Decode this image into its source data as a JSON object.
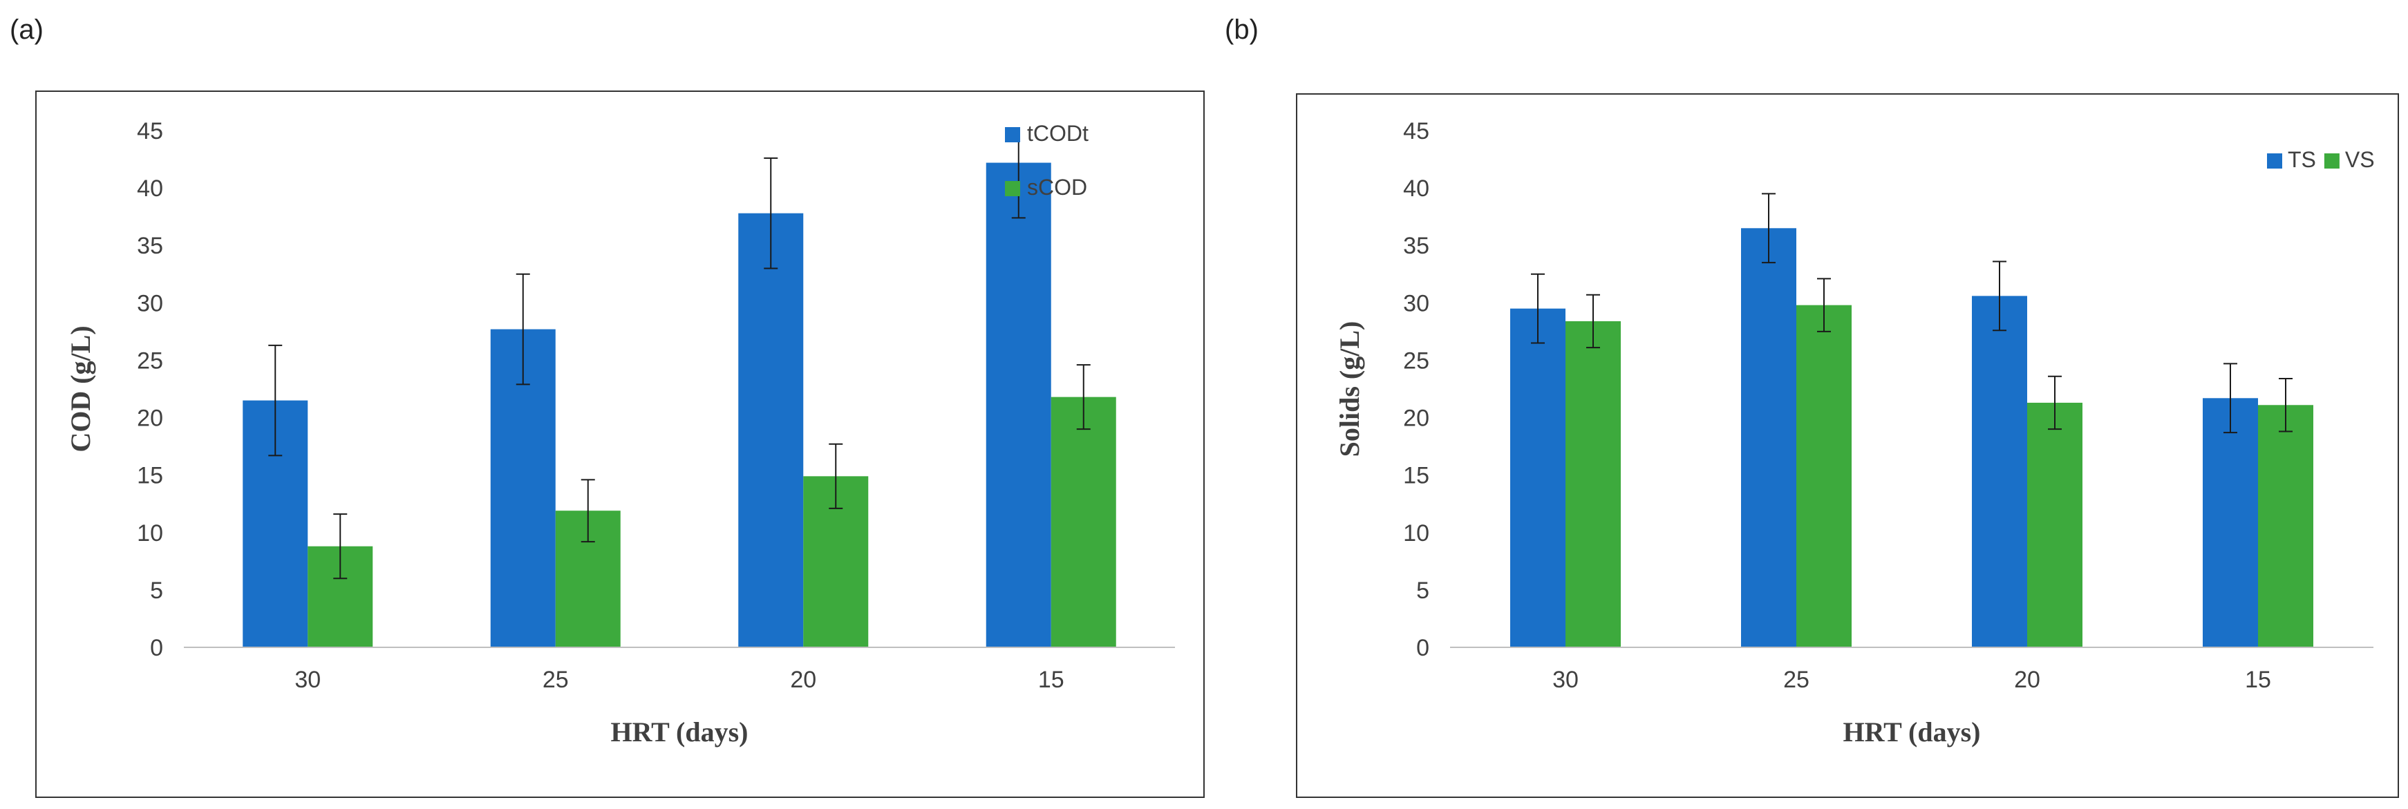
{
  "chart_data": [
    {
      "panel": "(a)",
      "type": "bar",
      "categories": [
        "30",
        "25",
        "20",
        "15"
      ],
      "series": [
        {
          "name": "tCODt",
          "color": "#1a70c8",
          "values": [
            21.5,
            27.7,
            37.8,
            42.2
          ],
          "errors": [
            4.8,
            4.8,
            4.8,
            4.8
          ]
        },
        {
          "name": "sCOD",
          "color": "#3daa3d",
          "values": [
            8.8,
            11.9,
            14.9,
            21.8
          ],
          "errors": [
            2.8,
            2.7,
            2.8,
            2.8
          ]
        }
      ],
      "xlabel": "HRT (days)",
      "ylabel": "COD (g/L)",
      "ylim": [
        0,
        45
      ],
      "yticks": [
        "0",
        "5",
        "10",
        "15",
        "20",
        "25",
        "30",
        "35",
        "40",
        "45"
      ],
      "legend": "top-right, stacked"
    },
    {
      "panel": "(b)",
      "type": "bar",
      "categories": [
        "30",
        "25",
        "20",
        "15"
      ],
      "series": [
        {
          "name": "TS",
          "color": "#1a70c8",
          "values": [
            29.5,
            36.5,
            30.6,
            21.7
          ],
          "errors": [
            3.0,
            3.0,
            3.0,
            3.0
          ]
        },
        {
          "name": "VS",
          "color": "#3daa3d",
          "values": [
            28.4,
            29.8,
            21.3,
            21.1
          ],
          "errors": [
            2.3,
            2.3,
            2.3,
            2.3
          ]
        }
      ],
      "xlabel": "HRT (days)",
      "ylabel": "Solids  (g/L)",
      "ylim": [
        0,
        45
      ],
      "yticks": [
        "0",
        "5",
        "10",
        "15",
        "20",
        "25",
        "30",
        "35",
        "40",
        "45"
      ],
      "legend": "top-right, inline"
    }
  ]
}
